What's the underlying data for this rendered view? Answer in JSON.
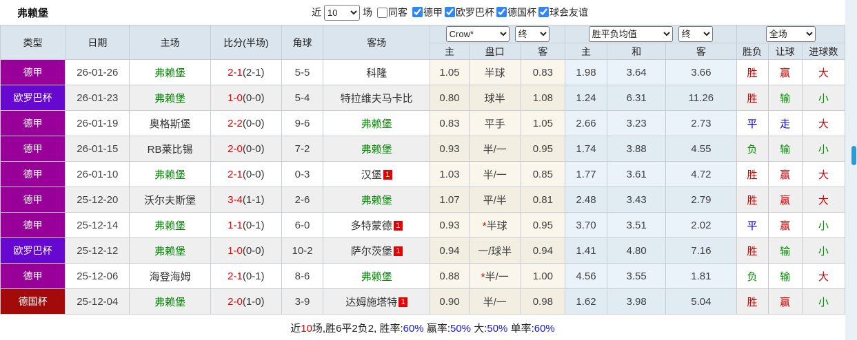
{
  "title": "弗赖堡",
  "filter_bar": {
    "near_label": "近",
    "near_value": "10",
    "games_label": "场",
    "same_away": {
      "label": "同客",
      "checked": false
    },
    "leagues": [
      {
        "label": "德甲",
        "checked": true
      },
      {
        "label": "欧罗巴杯",
        "checked": true
      },
      {
        "label": "德国杯",
        "checked": true
      },
      {
        "label": "球会友谊",
        "checked": true
      }
    ]
  },
  "selects": {
    "bookmaker": "Crow*",
    "bookmaker_time": "终",
    "avg_label": "胜平负均值",
    "avg_time": "终",
    "scope": "全场"
  },
  "columns": {
    "main": [
      "类型",
      "日期",
      "主场",
      "比分(半场)",
      "角球",
      "客场"
    ],
    "sub": [
      "主",
      "盘口",
      "客",
      "主",
      "和",
      "客",
      "胜负",
      "让球",
      "进球数"
    ]
  },
  "league_colors": {
    "德甲": "#990099",
    "欧罗巴杯": "#6608cf",
    "德国杯": "#a30b0b"
  },
  "rows": [
    {
      "league": "德甲",
      "date": "26-01-26",
      "home": {
        "name": "弗赖堡",
        "focus": true
      },
      "score": {
        "ft": "2-1",
        "ht": "(2-1)"
      },
      "corners": "5-5",
      "away": {
        "name": "科隆",
        "focus": false,
        "badge": ""
      },
      "odds": {
        "home": "1.05",
        "handicap": "半球",
        "star": false,
        "away": "0.83"
      },
      "avg": {
        "home": "1.98",
        "draw": "3.64",
        "away": "3.66"
      },
      "result": {
        "outcome": "胜",
        "outcome_color": "red",
        "handicap": "赢",
        "handicap_color": "red",
        "goals": "大",
        "goals_color": "red"
      }
    },
    {
      "league": "欧罗巴杯",
      "date": "26-01-23",
      "home": {
        "name": "弗赖堡",
        "focus": true
      },
      "score": {
        "ft": "1-0",
        "ht": "(0-0)"
      },
      "corners": "5-4",
      "away": {
        "name": "特拉维夫马卡比",
        "focus": false,
        "badge": ""
      },
      "odds": {
        "home": "0.80",
        "handicap": "球半",
        "star": false,
        "away": "1.08"
      },
      "avg": {
        "home": "1.24",
        "draw": "6.31",
        "away": "11.26"
      },
      "result": {
        "outcome": "胜",
        "outcome_color": "red",
        "handicap": "输",
        "handicap_color": "green",
        "goals": "小",
        "goals_color": "green"
      }
    },
    {
      "league": "德甲",
      "date": "26-01-19",
      "home": {
        "name": "奥格斯堡",
        "focus": false
      },
      "score": {
        "ft": "2-2",
        "ht": "(0-0)"
      },
      "corners": "9-6",
      "away": {
        "name": "弗赖堡",
        "focus": true,
        "badge": ""
      },
      "odds": {
        "home": "0.83",
        "handicap": "平手",
        "star": false,
        "away": "1.05"
      },
      "avg": {
        "home": "2.66",
        "draw": "3.23",
        "away": "2.73"
      },
      "result": {
        "outcome": "平",
        "outcome_color": "blue",
        "handicap": "走",
        "handicap_color": "blue",
        "goals": "大",
        "goals_color": "red"
      }
    },
    {
      "league": "德甲",
      "date": "26-01-15",
      "home": {
        "name": "RB莱比锡",
        "focus": false
      },
      "score": {
        "ft": "2-0",
        "ht": "(0-0)"
      },
      "corners": "7-2",
      "away": {
        "name": "弗赖堡",
        "focus": true,
        "badge": ""
      },
      "odds": {
        "home": "0.93",
        "handicap": "半/一",
        "star": false,
        "away": "0.95"
      },
      "avg": {
        "home": "1.74",
        "draw": "3.88",
        "away": "4.55"
      },
      "result": {
        "outcome": "负",
        "outcome_color": "green",
        "handicap": "输",
        "handicap_color": "green",
        "goals": "小",
        "goals_color": "green"
      }
    },
    {
      "league": "德甲",
      "date": "26-01-10",
      "home": {
        "name": "弗赖堡",
        "focus": true
      },
      "score": {
        "ft": "2-1",
        "ht": "(0-0)"
      },
      "corners": "0-3",
      "away": {
        "name": "汉堡",
        "focus": false,
        "badge": "1"
      },
      "odds": {
        "home": "1.03",
        "handicap": "半/一",
        "star": false,
        "away": "0.85"
      },
      "avg": {
        "home": "1.77",
        "draw": "3.61",
        "away": "4.72"
      },
      "result": {
        "outcome": "胜",
        "outcome_color": "red",
        "handicap": "赢",
        "handicap_color": "red",
        "goals": "大",
        "goals_color": "red"
      }
    },
    {
      "league": "德甲",
      "date": "25-12-20",
      "home": {
        "name": "沃尔夫斯堡",
        "focus": false
      },
      "score": {
        "ft": "3-4",
        "ht": "(1-1)"
      },
      "corners": "2-6",
      "away": {
        "name": "弗赖堡",
        "focus": true,
        "badge": ""
      },
      "odds": {
        "home": "1.07",
        "handicap": "平/半",
        "star": false,
        "away": "0.81"
      },
      "avg": {
        "home": "2.48",
        "draw": "3.43",
        "away": "2.79"
      },
      "result": {
        "outcome": "胜",
        "outcome_color": "red",
        "handicap": "赢",
        "handicap_color": "red",
        "goals": "大",
        "goals_color": "red"
      }
    },
    {
      "league": "德甲",
      "date": "25-12-14",
      "home": {
        "name": "弗赖堡",
        "focus": true
      },
      "score": {
        "ft": "1-1",
        "ht": "(0-1)"
      },
      "corners": "6-0",
      "away": {
        "name": "多特蒙德",
        "focus": false,
        "badge": "1"
      },
      "odds": {
        "home": "0.93",
        "handicap": "半球",
        "star": true,
        "away": "0.95"
      },
      "avg": {
        "home": "3.70",
        "draw": "3.51",
        "away": "2.02"
      },
      "result": {
        "outcome": "平",
        "outcome_color": "blue",
        "handicap": "赢",
        "handicap_color": "red",
        "goals": "小",
        "goals_color": "green"
      }
    },
    {
      "league": "欧罗巴杯",
      "date": "25-12-12",
      "home": {
        "name": "弗赖堡",
        "focus": true
      },
      "score": {
        "ft": "1-0",
        "ht": "(0-0)"
      },
      "corners": "10-2",
      "away": {
        "name": "萨尔茨堡",
        "focus": false,
        "badge": "1"
      },
      "odds": {
        "home": "0.94",
        "handicap": "一/球半",
        "star": false,
        "away": "0.94"
      },
      "avg": {
        "home": "1.41",
        "draw": "4.80",
        "away": "7.16"
      },
      "result": {
        "outcome": "胜",
        "outcome_color": "red",
        "handicap": "输",
        "handicap_color": "green",
        "goals": "小",
        "goals_color": "green"
      }
    },
    {
      "league": "德甲",
      "date": "25-12-06",
      "home": {
        "name": "海登海姆",
        "focus": false
      },
      "score": {
        "ft": "2-1",
        "ht": "(0-1)"
      },
      "corners": "8-6",
      "away": {
        "name": "弗赖堡",
        "focus": true,
        "badge": ""
      },
      "odds": {
        "home": "0.88",
        "handicap": "半/一",
        "star": true,
        "away": "1.00"
      },
      "avg": {
        "home": "4.56",
        "draw": "3.55",
        "away": "1.81"
      },
      "result": {
        "outcome": "负",
        "outcome_color": "green",
        "handicap": "输",
        "handicap_color": "green",
        "goals": "大",
        "goals_color": "red"
      }
    },
    {
      "league": "德国杯",
      "date": "25-12-04",
      "home": {
        "name": "弗赖堡",
        "focus": true
      },
      "score": {
        "ft": "2-0",
        "ht": "(1-0)"
      },
      "corners": "3-9",
      "away": {
        "name": "达姆施塔特",
        "focus": false,
        "badge": "1"
      },
      "odds": {
        "home": "0.90",
        "handicap": "半/一",
        "star": false,
        "away": "0.98"
      },
      "avg": {
        "home": "1.62",
        "draw": "3.98",
        "away": "5.04"
      },
      "result": {
        "outcome": "胜",
        "outcome_color": "red",
        "handicap": "赢",
        "handicap_color": "red",
        "goals": "小",
        "goals_color": "green"
      }
    }
  ],
  "footer": {
    "parts": [
      {
        "text": "近",
        "color": "dark"
      },
      {
        "text": "10",
        "color": "red"
      },
      {
        "text": "场,胜6平2负2, 胜率:",
        "color": "dark"
      },
      {
        "text": "60%",
        "color": "blue"
      },
      {
        "text": " 赢率:",
        "color": "dark"
      },
      {
        "text": "50%",
        "color": "blue"
      },
      {
        "text": " 大:",
        "color": "dark"
      },
      {
        "text": "50%",
        "color": "blue"
      },
      {
        "text": " 单率:",
        "color": "dark"
      },
      {
        "text": "60%",
        "color": "blue"
      }
    ]
  }
}
